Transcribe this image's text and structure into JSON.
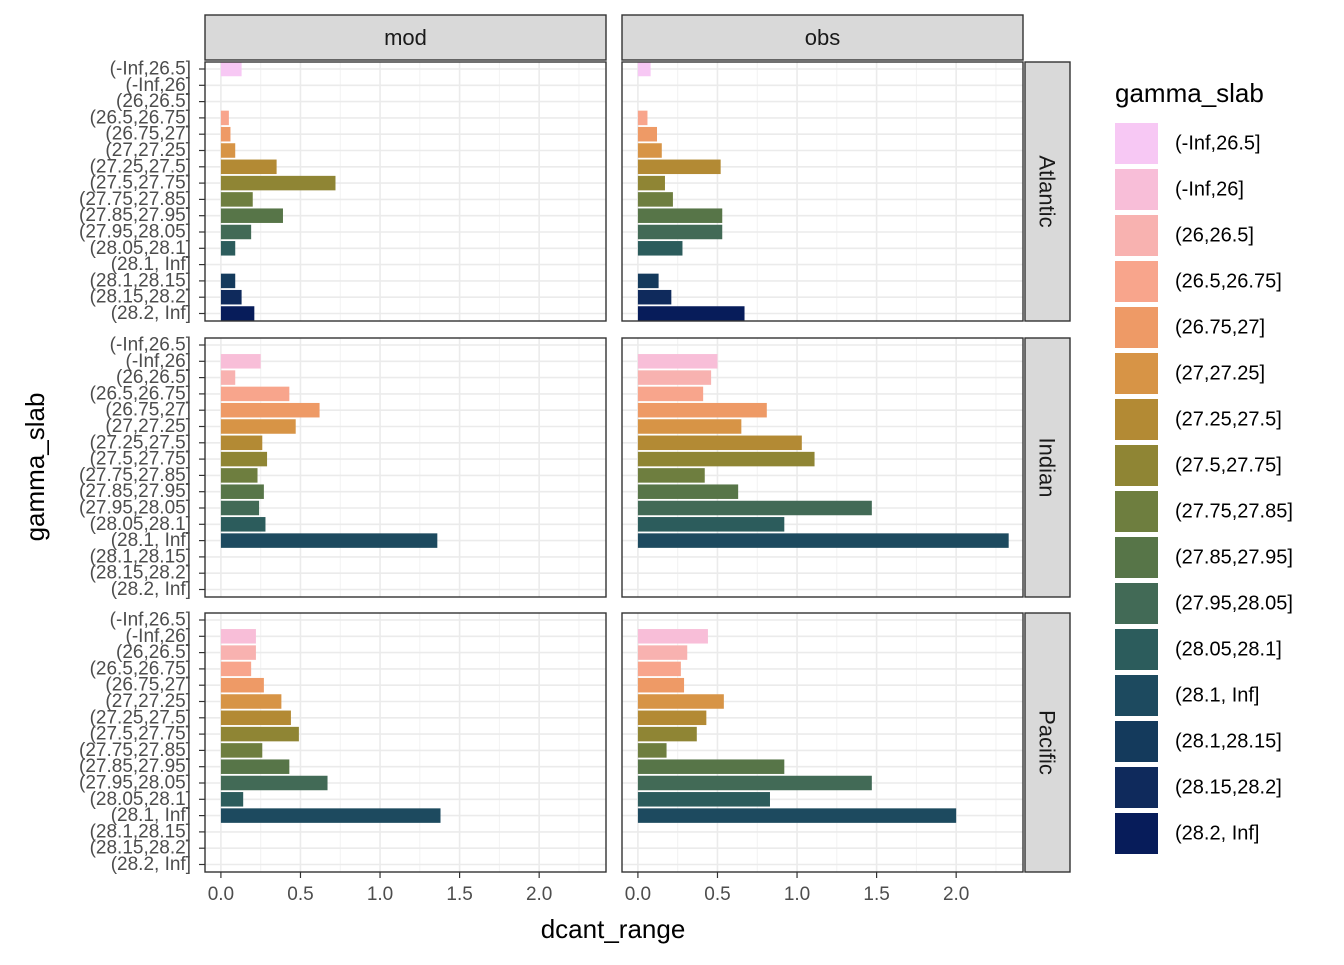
{
  "chart_data": {
    "type": "bar",
    "orientation": "horizontal",
    "xlabel": "dcant_range",
    "ylabel": "gamma_slab",
    "xlim": [
      -0.1,
      2.42
    ],
    "x_ticks": [
      0.0,
      0.5,
      1.0,
      1.5,
      2.0
    ],
    "x_tick_labels": [
      "0.0",
      "0.5",
      "1.0",
      "1.5",
      "2.0"
    ],
    "grid": true,
    "legend_position": "right",
    "legend_title": "gamma_slab",
    "facet_cols": [
      "mod",
      "obs"
    ],
    "facet_rows": [
      "Atlantic",
      "Indian",
      "Pacific"
    ],
    "categories": [
      "(-Inf,26.5]",
      "(-Inf,26]",
      "(26,26.5]",
      "(26.5,26.75]",
      "(26.75,27]",
      "(27,27.25]",
      "(27.25,27.5]",
      "(27.5,27.75]",
      "(27.75,27.85]",
      "(27.85,27.95]",
      "(27.95,28.05]",
      "(28.05,28.1]",
      "(28.1, Inf]",
      "(28.1,28.15]",
      "(28.15,28.2]",
      "(28.2, Inf]"
    ],
    "colors": [
      "#F7C8F4",
      "#F8BED8",
      "#F8B2B0",
      "#F8A58C",
      "#EE9A66",
      "#D79446",
      "#B38A34",
      "#8F8534",
      "#6E7E3F",
      "#577548",
      "#426A56",
      "#2C5C5C",
      "#1D4A5F",
      "#143A5C",
      "#0F2A5C",
      "#071C5A"
    ],
    "series": [
      {
        "ocean": "Atlantic",
        "panel": "mod",
        "values": [
          0.13,
          null,
          null,
          0.05,
          0.06,
          0.09,
          0.35,
          0.72,
          0.2,
          0.39,
          0.19,
          0.09,
          null,
          0.09,
          0.13,
          0.21
        ]
      },
      {
        "ocean": "Atlantic",
        "panel": "obs",
        "values": [
          0.08,
          null,
          null,
          0.06,
          0.12,
          0.15,
          0.52,
          0.17,
          0.22,
          0.53,
          0.53,
          0.28,
          null,
          0.13,
          0.21,
          0.67
        ]
      },
      {
        "ocean": "Indian",
        "panel": "mod",
        "values": [
          null,
          0.25,
          0.09,
          0.43,
          0.62,
          0.47,
          0.26,
          0.29,
          0.23,
          0.27,
          0.24,
          0.28,
          1.36,
          null,
          null,
          null
        ]
      },
      {
        "ocean": "Indian",
        "panel": "obs",
        "values": [
          null,
          0.5,
          0.46,
          0.41,
          0.81,
          0.65,
          1.03,
          1.11,
          0.42,
          0.63,
          1.47,
          0.92,
          2.33,
          null,
          null,
          null
        ]
      },
      {
        "ocean": "Pacific",
        "panel": "mod",
        "values": [
          null,
          0.22,
          0.22,
          0.19,
          0.27,
          0.38,
          0.44,
          0.49,
          0.26,
          0.43,
          0.67,
          0.14,
          1.38,
          null,
          null,
          null
        ]
      },
      {
        "ocean": "Pacific",
        "panel": "obs",
        "values": [
          null,
          0.44,
          0.31,
          0.27,
          0.29,
          0.54,
          0.43,
          0.37,
          0.18,
          0.92,
          1.47,
          0.83,
          2.0,
          null,
          null,
          null
        ]
      }
    ]
  }
}
